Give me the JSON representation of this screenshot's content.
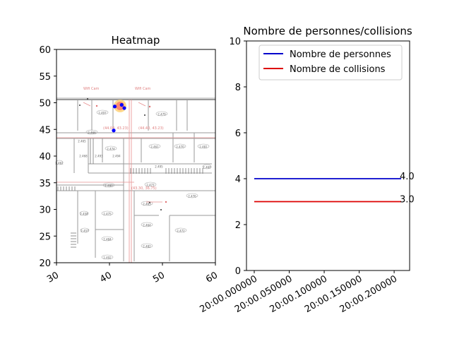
{
  "chart_data": [
    {
      "type": "scatter",
      "title": "Heatmap",
      "xlabel": "",
      "ylabel": "",
      "xlim": [
        30,
        60
      ],
      "ylim": [
        20,
        60
      ],
      "xticks": [
        "30",
        "40",
        "50",
        "60"
      ],
      "yticks": [
        "20",
        "25",
        "30",
        "35",
        "40",
        "45",
        "50",
        "55",
        "60"
      ],
      "background": "floor-plan",
      "points": [
        {
          "x": 41.0,
          "y": 49.3,
          "color": "#0000ff"
        },
        {
          "x": 42.3,
          "y": 49.6,
          "color": "#0000ff"
        },
        {
          "x": 42.8,
          "y": 49.0,
          "color": "#0000ff"
        },
        {
          "x": 40.8,
          "y": 44.8,
          "color": "#0000ff"
        }
      ],
      "hotspot": {
        "x": 42.0,
        "y": 49.4,
        "colors": [
          "#ff6666",
          "#ffcc66"
        ]
      },
      "floorplan_text": {
        "coords_a": "(44.08, 43.23)",
        "coords_b": "(44.40, 43.23)",
        "coords_c": "(43.30, 36.75)",
        "cam_a": "Wifi  Cam",
        "cam_b": "Wifi  Cam",
        "rooms": [
          "2.497",
          "2.479",
          "2.466",
          "2.474",
          "2.461",
          "2.470",
          "2.481",
          "2.480",
          "2.477",
          "2.476",
          "2.475",
          "2.463",
          "2.464",
          "2.472",
          "2.484",
          "2.482",
          "2.492",
          "2.458",
          "2.457",
          "2.460",
          "2.462",
          "2.465",
          "2.468",
          "2.493",
          "2.494",
          "2.495"
        ]
      }
    },
    {
      "type": "line",
      "title": "Nombre de personnes/collisions",
      "xlabel": "",
      "ylabel": "",
      "ylim": [
        0,
        10
      ],
      "xticks": [
        "20:00.000000",
        "20:00.050000",
        "20:00.100000",
        "20:00.150000",
        "20:00.200000"
      ],
      "yticks": [
        "0",
        "2",
        "4",
        "6",
        "8",
        "10"
      ],
      "legend_position": "top-right",
      "series": [
        {
          "name": "Nombre de personnes",
          "color": "#0000cc",
          "x": [
            0.0,
            0.21
          ],
          "values": [
            4.0,
            4.0
          ],
          "end_label": "4.0"
        },
        {
          "name": "Nombre de collisions",
          "color": "#dd0000",
          "x": [
            0.0,
            0.21
          ],
          "values": [
            3.0,
            3.0
          ],
          "end_label": "3.0"
        }
      ]
    }
  ]
}
